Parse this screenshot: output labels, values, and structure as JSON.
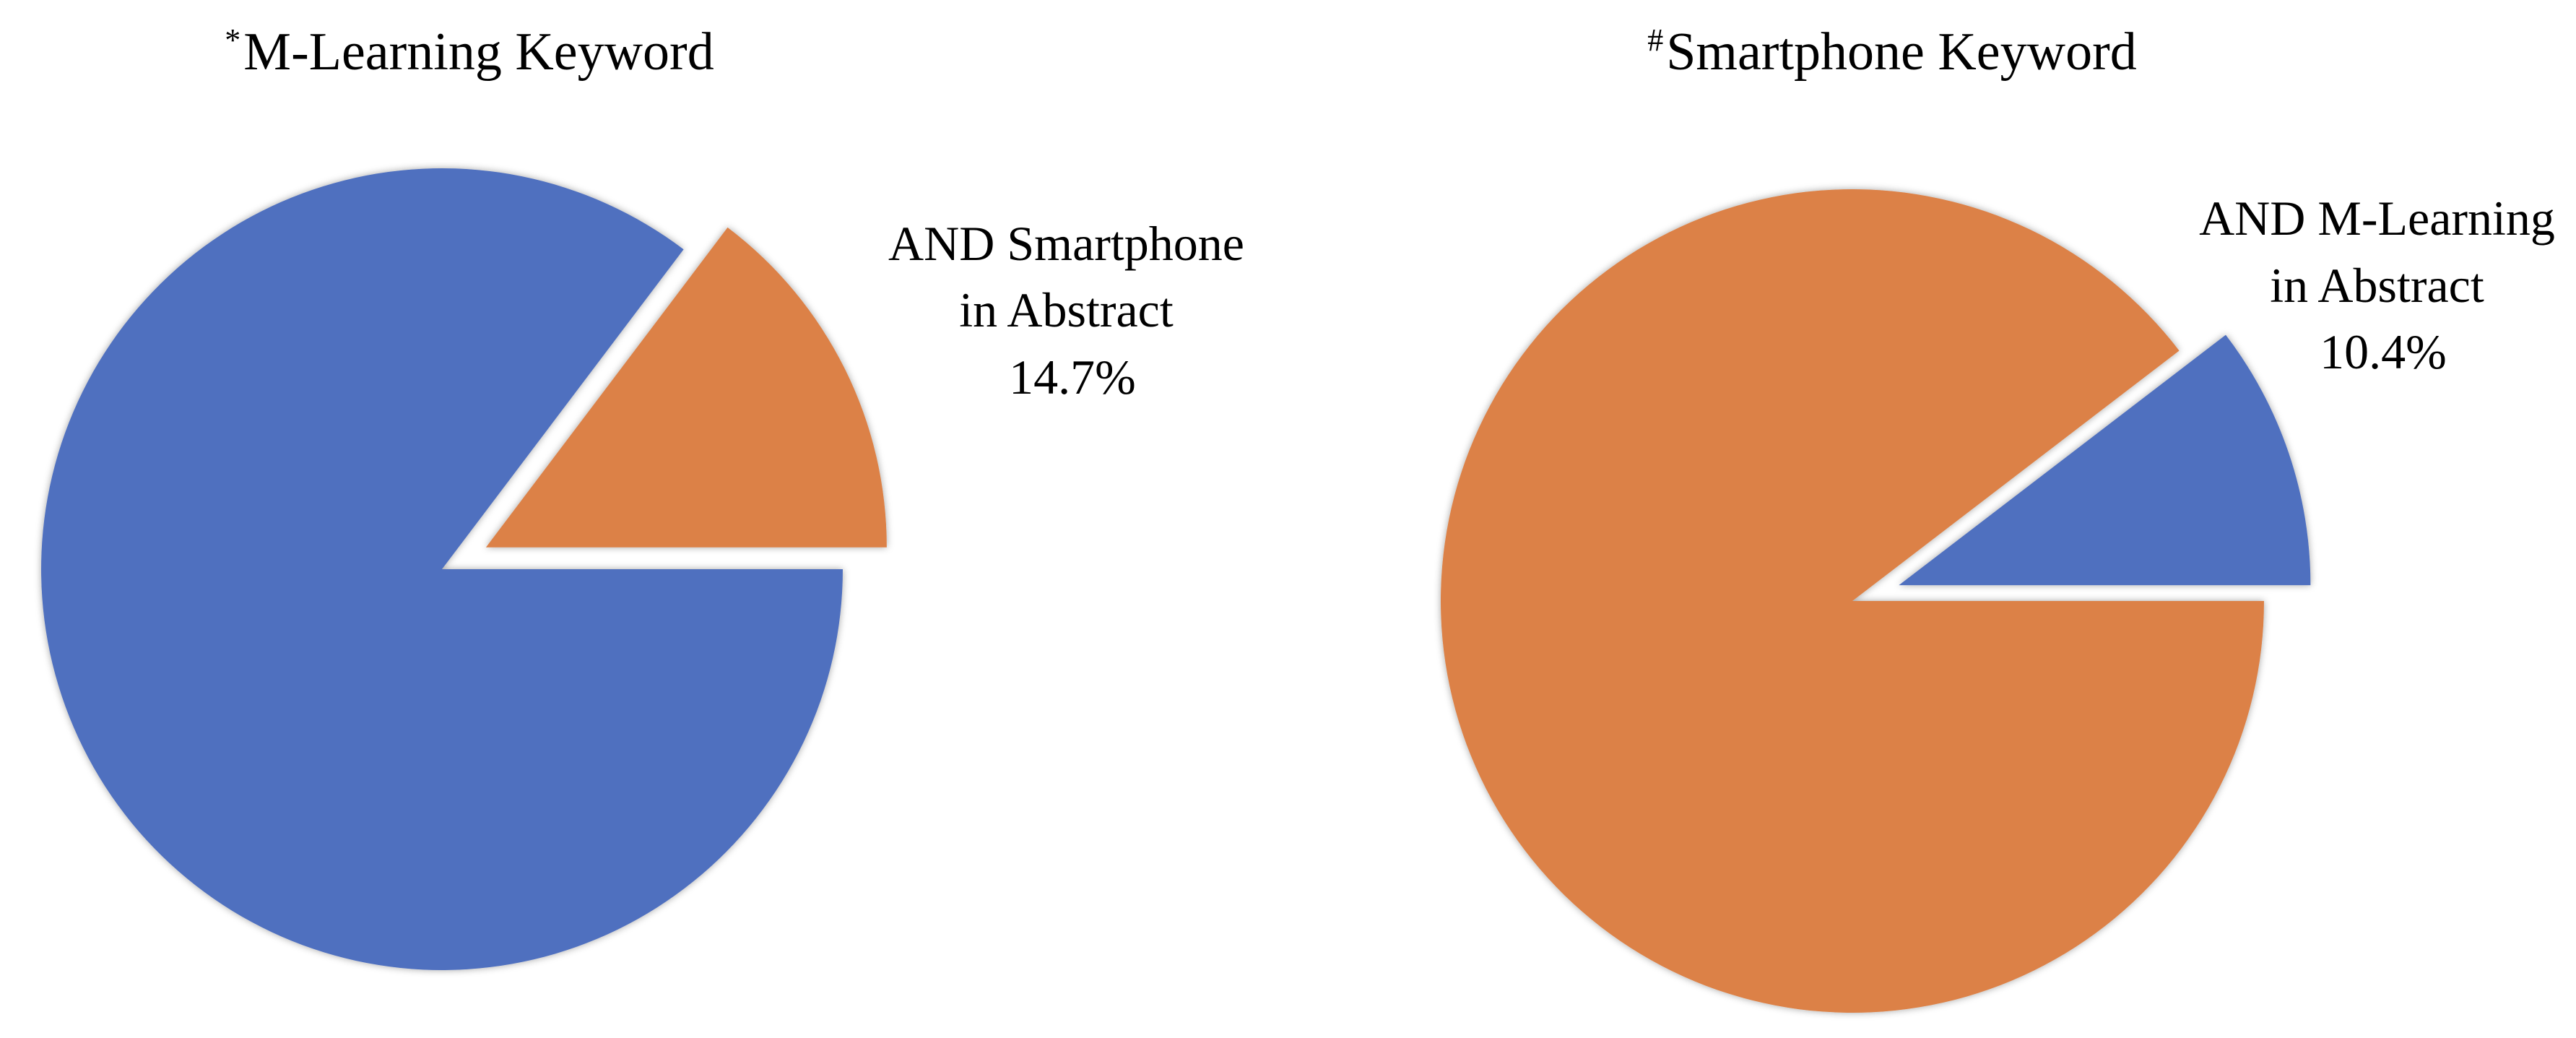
{
  "colors": {
    "blue": "#5070BF",
    "orange": "#DC8146",
    "background": "#FFFFFF",
    "text": "#000000"
  },
  "chart_data": [
    {
      "type": "pie",
      "title_mark": "*",
      "title": "M-Learning Keyword",
      "slices": [
        {
          "label_lines": [
            "AND Smartphone",
            "in Abstract"
          ],
          "value_label": "14.7%",
          "value": 14.7,
          "color": "#DC8146",
          "exploded": true
        },
        {
          "label_lines": [],
          "value_label": "",
          "value": 85.3,
          "color": "#5070BF",
          "exploded": false
        }
      ]
    },
    {
      "type": "pie",
      "title_mark": "#",
      "title": "Smartphone Keyword",
      "slices": [
        {
          "label_lines": [
            "AND M-Learning",
            "in Abstract"
          ],
          "value_label": "10.4%",
          "value": 10.4,
          "color": "#5070BF",
          "exploded": true
        },
        {
          "label_lines": [],
          "value_label": "",
          "value": 89.6,
          "color": "#DC8146",
          "exploded": false
        }
      ]
    }
  ]
}
